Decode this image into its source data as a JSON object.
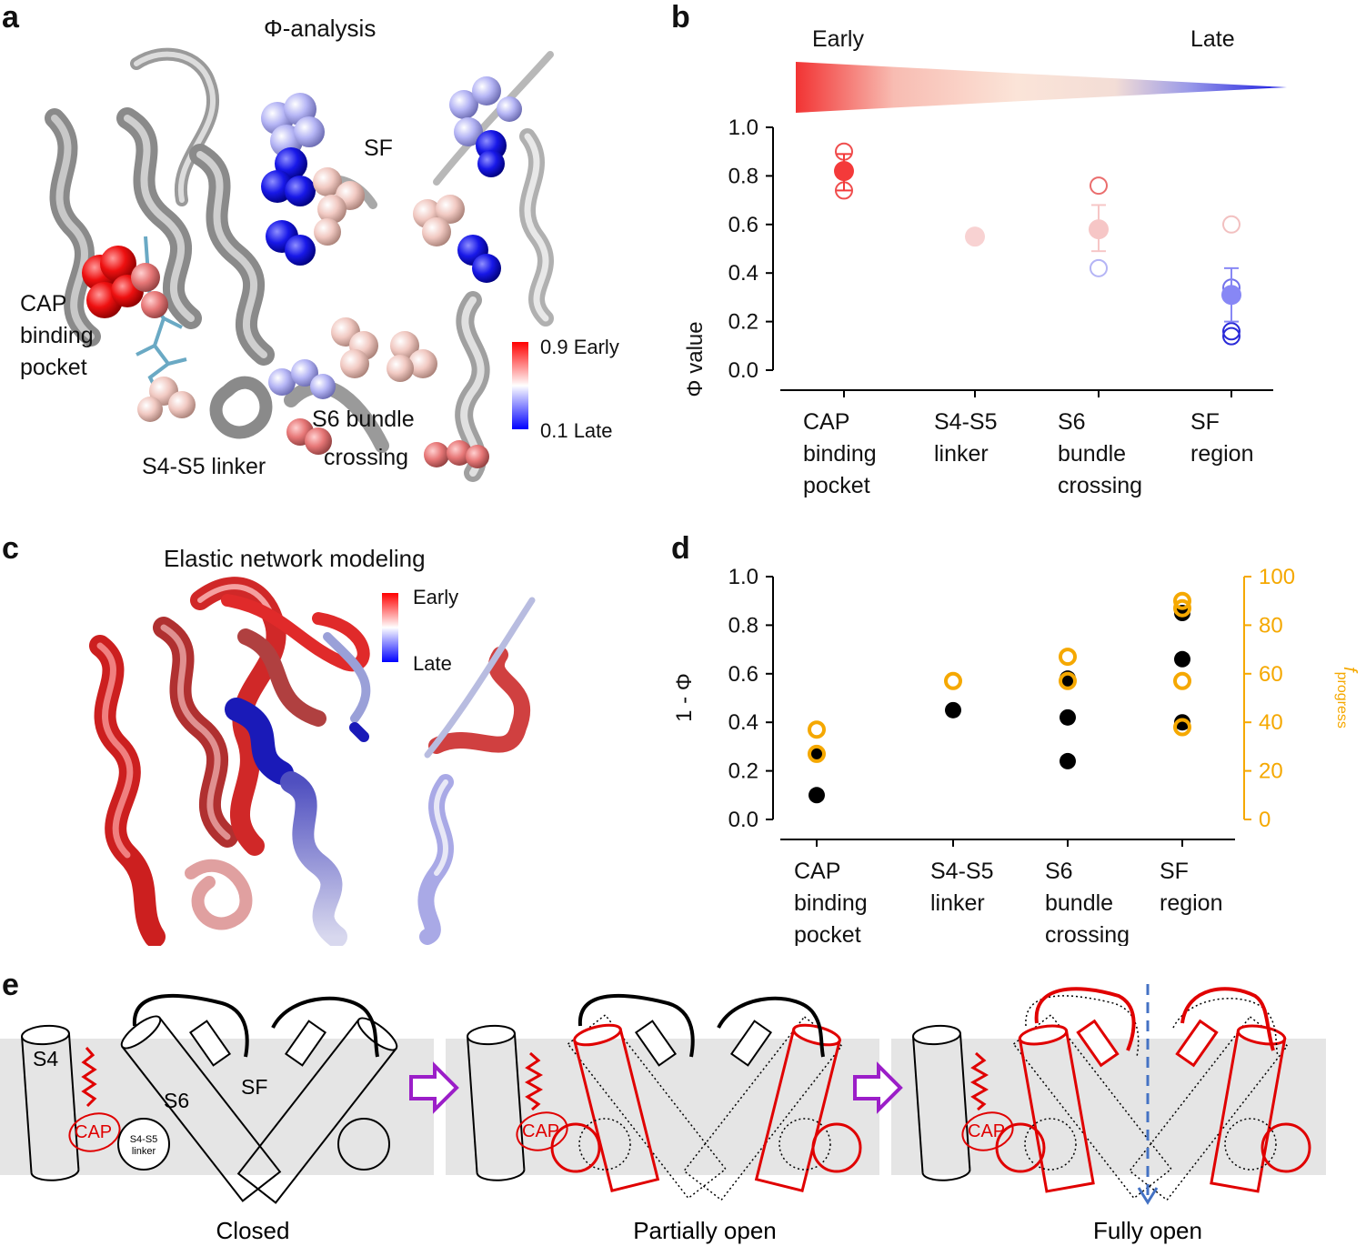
{
  "panels": {
    "a": {
      "letter": "a",
      "title": "Φ-analysis",
      "labels": {
        "sf": "SF",
        "cap": [
          "CAP",
          "binding",
          "pocket"
        ],
        "s6": [
          "S6 bundle",
          "crossing"
        ],
        "s4s5": "S4-S5 linker"
      },
      "colorbar": {
        "top": "0.9 Early",
        "bottom": "0.1 Late",
        "top_color": "#ff0000",
        "bottom_color": "#0000ff"
      }
    },
    "b": {
      "letter": "b",
      "gradient_left": "Early",
      "gradient_right": "Late"
    },
    "c": {
      "letter": "c",
      "title": "Elastic network modeling",
      "colorbar": {
        "top": "Early",
        "bottom": "Late"
      }
    },
    "d": {
      "letter": "d"
    },
    "e": {
      "letter": "e",
      "states": [
        "Closed",
        "Partially open",
        "Fully open"
      ],
      "labels": {
        "s4": "S4",
        "s6": "S6",
        "sf": "SF",
        "cap": "CAP",
        "s4s5": [
          "S4-S5",
          "linker"
        ]
      }
    }
  },
  "chart_data": [
    {
      "panel": "b",
      "type": "scatter",
      "ylabel": "Φ value",
      "ylim": [
        0.0,
        1.0
      ],
      "yticks": [
        "0.0",
        "0.2",
        "0.4",
        "0.6",
        "0.8",
        "1.0"
      ],
      "categories": [
        [
          "CAP",
          "binding",
          "pocket"
        ],
        [
          "S4-S5",
          "linker"
        ],
        [
          "S6",
          "bundle",
          "crossing"
        ],
        [
          "SF",
          "region"
        ]
      ],
      "mean": [
        {
          "cat": 0,
          "value": 0.82,
          "err": [
            0.74,
            0.89
          ],
          "color": "#f43a3a"
        },
        {
          "cat": 1,
          "value": 0.55,
          "err": null,
          "color": "#f8d2d2"
        },
        {
          "cat": 2,
          "value": 0.58,
          "err": [
            0.49,
            0.68
          ],
          "color": "#f6c6c6"
        },
        {
          "cat": 3,
          "value": 0.31,
          "err": [
            0.2,
            0.42
          ],
          "color": "#8787f5"
        }
      ],
      "points": [
        {
          "cat": 0,
          "value": 0.9,
          "color": "#ef4d4d"
        },
        {
          "cat": 0,
          "value": 0.74,
          "color": "#ef4d4d"
        },
        {
          "cat": 2,
          "value": 0.76,
          "color": "#ea6d6d"
        },
        {
          "cat": 2,
          "value": 0.42,
          "color": "#b4b4f5"
        },
        {
          "cat": 3,
          "value": 0.6,
          "color": "#f2c0c0"
        },
        {
          "cat": 3,
          "value": 0.34,
          "color": "#7373ea"
        },
        {
          "cat": 3,
          "value": 0.16,
          "color": "#2a2ad8"
        },
        {
          "cat": 3,
          "value": 0.14,
          "color": "#2a2ad8"
        }
      ]
    },
    {
      "panel": "d",
      "type": "scatter",
      "ylabel": "1 - Φ",
      "ylim": [
        0.0,
        1.0
      ],
      "yticks": [
        "0.0",
        "0.2",
        "0.4",
        "0.6",
        "0.8",
        "1.0"
      ],
      "y2label": "f",
      "y2label_sub": "progress",
      "y2lim": [
        0,
        100
      ],
      "y2ticks": [
        "0",
        "20",
        "40",
        "60",
        "80",
        "100"
      ],
      "y2color": "#f5a800",
      "categories": [
        [
          "CAP",
          "binding",
          "pocket"
        ],
        [
          "S4-S5",
          "linker"
        ],
        [
          "S6",
          "bundle",
          "crossing"
        ],
        [
          "SF",
          "region"
        ]
      ],
      "series": [
        {
          "name": "",
          "axis": "left",
          "color": "#000000",
          "points": [
            [
              0,
              0.27
            ],
            [
              0,
              0.1
            ],
            [
              1,
              0.45
            ],
            [
              2,
              0.58
            ],
            [
              2,
              0.42
            ],
            [
              2,
              0.24
            ],
            [
              3,
              0.85
            ],
            [
              3,
              0.66
            ],
            [
              3,
              0.4
            ]
          ]
        },
        {
          "name": "",
          "axis": "right",
          "color": "#f5a800",
          "points": [
            [
              0,
              37
            ],
            [
              0,
              27
            ],
            [
              1,
              57
            ],
            [
              2,
              67
            ],
            [
              2,
              57
            ],
            [
              3,
              90
            ],
            [
              3,
              87
            ],
            [
              3,
              57
            ],
            [
              3,
              38
            ]
          ]
        }
      ]
    }
  ]
}
